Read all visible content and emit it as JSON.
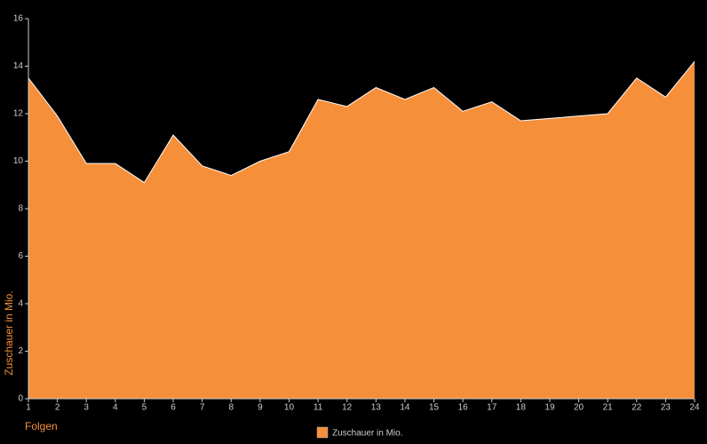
{
  "chart_data": {
    "type": "area",
    "x_label": "Folgen",
    "y_label": "Zuschauer in Mio.",
    "x": [
      1,
      2,
      3,
      4,
      5,
      6,
      7,
      8,
      9,
      10,
      11,
      12,
      13,
      14,
      15,
      16,
      17,
      18,
      19,
      20,
      21,
      22,
      23,
      24
    ],
    "series": [
      {
        "name": "Zuschauer in Mio.",
        "color": "#f68f3a",
        "values": [
          13.5,
          11.9,
          9.9,
          9.9,
          9.1,
          11.1,
          9.8,
          9.4,
          10.0,
          10.4,
          12.6,
          12.3,
          13.1,
          12.6,
          13.1,
          12.1,
          12.5,
          11.7,
          11.8,
          11.9,
          12.0,
          13.5,
          12.7,
          14.2
        ]
      }
    ],
    "xlim": [
      1,
      24
    ],
    "xticks": [
      1,
      2,
      3,
      4,
      5,
      6,
      7,
      8,
      9,
      10,
      11,
      12,
      13,
      14,
      15,
      16,
      17,
      18,
      19,
      20,
      21,
      22,
      23,
      24
    ],
    "ylim": [
      0,
      16
    ],
    "yticks": [
      0,
      2,
      4,
      6,
      8,
      10,
      12,
      14,
      16
    ],
    "line_color": "#ffffff",
    "label_color": "#f68f3a"
  }
}
